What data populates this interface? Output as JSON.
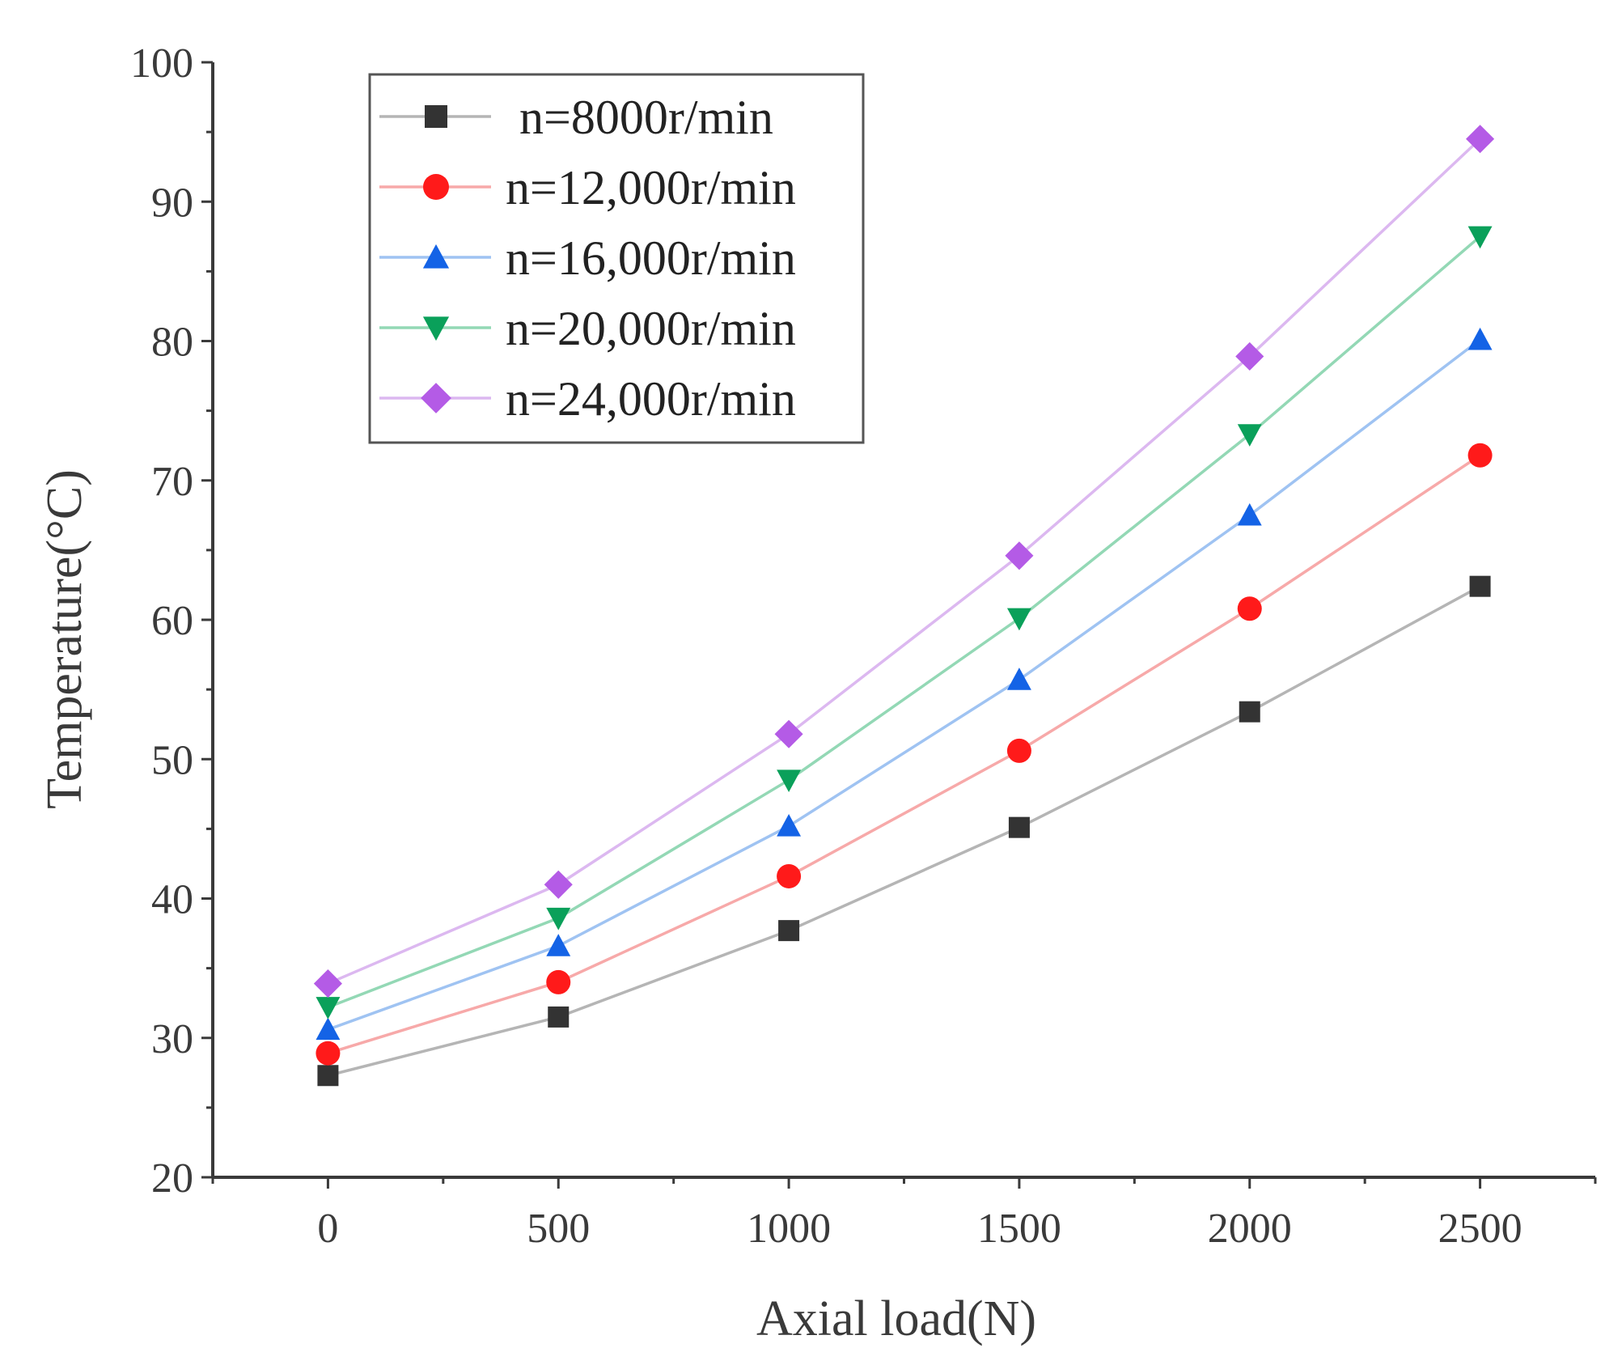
{
  "chart_data": {
    "type": "line",
    "title": "",
    "xlabel": "Axial load(N)",
    "ylabel": "Temperature(°C)",
    "x": [
      0,
      500,
      1000,
      1500,
      2000,
      2500
    ],
    "xlim": [
      -250,
      2750
    ],
    "ylim": [
      20,
      100
    ],
    "xticks": [
      0,
      500,
      1000,
      1500,
      2000,
      2500
    ],
    "yticks": [
      20,
      30,
      40,
      50,
      60,
      70,
      80,
      90,
      100
    ],
    "grid": false,
    "legend_position": "top-left",
    "series": [
      {
        "name": "n=8000r/min",
        "marker": "square",
        "marker_color": "#333333",
        "line_color": "#b5b5b5",
        "values": [
          27.3,
          31.5,
          37.7,
          45.1,
          53.4,
          62.4
        ]
      },
      {
        "name": "n=12,000r/min",
        "marker": "circle",
        "marker_color": "#ff1a1a",
        "line_color": "#f7a9a9",
        "values": [
          28.9,
          34.0,
          41.6,
          50.6,
          60.8,
          71.8
        ]
      },
      {
        "name": "n=16,000r/min",
        "marker": "triangle-up",
        "marker_color": "#1463e6",
        "line_color": "#9fc3f2",
        "values": [
          30.6,
          36.6,
          45.2,
          55.7,
          67.5,
          80.1
        ]
      },
      {
        "name": "n=20,000r/min",
        "marker": "triangle-down",
        "marker_color": "#0aa05a",
        "line_color": "#93d8b5",
        "values": [
          32.2,
          38.6,
          48.5,
          60.1,
          73.3,
          87.5
        ]
      },
      {
        "name": "n=24,000r/min",
        "marker": "diamond",
        "marker_color": "#b45be6",
        "line_color": "#dcb8f0",
        "values": [
          33.9,
          41.0,
          51.8,
          64.6,
          78.9,
          94.5
        ]
      }
    ]
  }
}
